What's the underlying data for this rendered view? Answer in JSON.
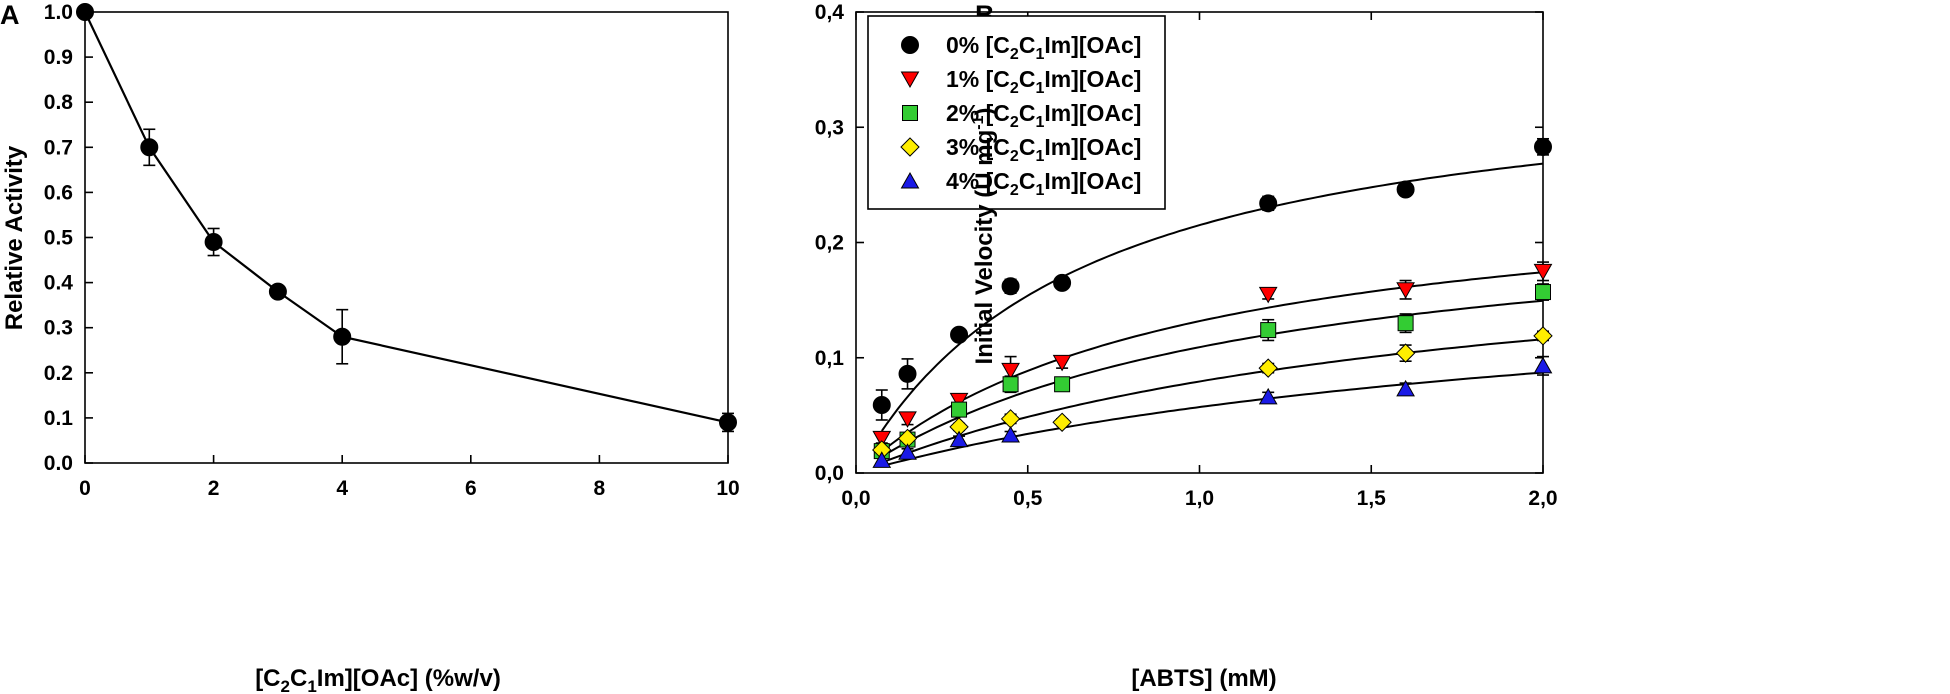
{
  "chart_data": [
    {
      "panel": "A",
      "type": "line",
      "xlabel": "[C2C1Im][OAc] (%w/v)",
      "ylabel": "Relative Activity",
      "xlim": [
        0,
        10
      ],
      "ylim": [
        0,
        1.0
      ],
      "x_ticks": [
        0,
        2,
        4,
        6,
        8,
        10
      ],
      "y_ticks": [
        0.0,
        0.1,
        0.2,
        0.3,
        0.4,
        0.5,
        0.6,
        0.7,
        0.8,
        0.9,
        1.0
      ],
      "x_tick_labels": [
        "0",
        "2",
        "4",
        "6",
        "8",
        "10"
      ],
      "y_tick_labels": [
        "0.0",
        "0.1",
        "0.2",
        "0.3",
        "0.4",
        "0.5",
        "0.6",
        "0.7",
        "0.8",
        "0.9",
        "1.0"
      ],
      "series": [
        {
          "name": "Relative activity",
          "color": "#000000",
          "marker": "circle",
          "x": [
            0,
            1,
            2,
            3,
            4,
            10
          ],
          "y": [
            1.0,
            0.7,
            0.49,
            0.38,
            0.28,
            0.09
          ],
          "error": [
            0,
            0.04,
            0.03,
            0,
            0.06,
            0.02
          ]
        }
      ]
    },
    {
      "panel": "B",
      "type": "scatter",
      "xlabel": "[ABTS] (mM)",
      "ylabel": "Initial Velocity (U mg-1)",
      "xlim": [
        0,
        2.0
      ],
      "ylim": [
        0,
        0.4
      ],
      "x_ticks": [
        0,
        0.5,
        1.0,
        1.5,
        2.0
      ],
      "y_ticks": [
        0,
        0.1,
        0.2,
        0.3,
        0.4
      ],
      "x_tick_labels": [
        "0,0",
        "0,5",
        "1,0",
        "1,5",
        "2,0"
      ],
      "y_tick_labels": [
        "0,0",
        "0,1",
        "0,2",
        "0,3",
        "0,4"
      ],
      "legend_position": "top-left",
      "x": [
        0.075,
        0.15,
        0.3,
        0.45,
        0.6,
        1.2,
        1.6,
        2.0
      ],
      "series": [
        {
          "name": "0% [C2C1Im][OAc]",
          "prefix": "0% [C",
          "mid": "C",
          "suffix": "Im][OAc]",
          "marker": "circle",
          "color": "#000000",
          "y": [
            0.059,
            0.086,
            0.12,
            0.162,
            0.165,
            0.234,
            0.246,
            0.283
          ],
          "error": [
            0.013,
            0.013,
            0.004,
            0.006,
            0.005,
            0.006,
            0.004,
            0.007
          ],
          "fit": {
            "vmax": 0.357,
            "km": 0.66
          }
        },
        {
          "name": "1% [C2C1Im][OAc]",
          "prefix": "1% [C",
          "mid": "C",
          "suffix": "Im][OAc]",
          "marker": "triangle-down",
          "color": "#ff0000",
          "y": [
            0.03,
            0.047,
            0.063,
            0.089,
            0.096,
            0.155,
            0.159,
            0.175
          ],
          "error": [
            0.004,
            0.005,
            0.004,
            0.012,
            0.005,
            0.004,
            0.008,
            0.008
          ],
          "fit": {
            "vmax": 0.257,
            "km": 0.95
          }
        },
        {
          "name": "2% [C2C1Im][OAc]",
          "prefix": "2% [C",
          "mid": "C",
          "suffix": "Im][OAc]",
          "marker": "square",
          "color": "#33cc33",
          "y": [
            0.019,
            0.029,
            0.055,
            0.077,
            0.077,
            0.124,
            0.13,
            0.157
          ],
          "error": [
            0.003,
            0.005,
            0.005,
            0.007,
            0.004,
            0.009,
            0.008,
            0.007
          ],
          "fit": {
            "vmax": 0.237,
            "km": 1.17
          }
        },
        {
          "name": "3% [C2C1Im][OAc]",
          "prefix": "3% [C",
          "mid": "C",
          "suffix": "Im][OAc]",
          "marker": "diamond",
          "color": "#ffee00",
          "y": [
            0.02,
            0.03,
            0.04,
            0.047,
            0.044,
            0.091,
            0.104,
            0.119
          ],
          "error": [
            0.002,
            0.003,
            0.003,
            0.004,
            0.003,
            0.004,
            0.007,
            0.004
          ],
          "fit": {
            "vmax": 0.216,
            "km": 1.72
          }
        },
        {
          "name": "4% [C2C1Im][OAc]",
          "prefix": "4% [C",
          "mid": "C",
          "suffix": "Im][OAc]",
          "marker": "triangle-up",
          "color": "#1a1ae6",
          "y": [
            0.011,
            0.018,
            0.029,
            0.033,
            null,
            0.066,
            0.073,
            0.093
          ],
          "error": [
            0.002,
            0.003,
            0.003,
            0.003,
            null,
            0.004,
            0.005,
            0.008
          ],
          "fit": {
            "vmax": 0.183,
            "km": 2.2
          }
        }
      ]
    }
  ]
}
